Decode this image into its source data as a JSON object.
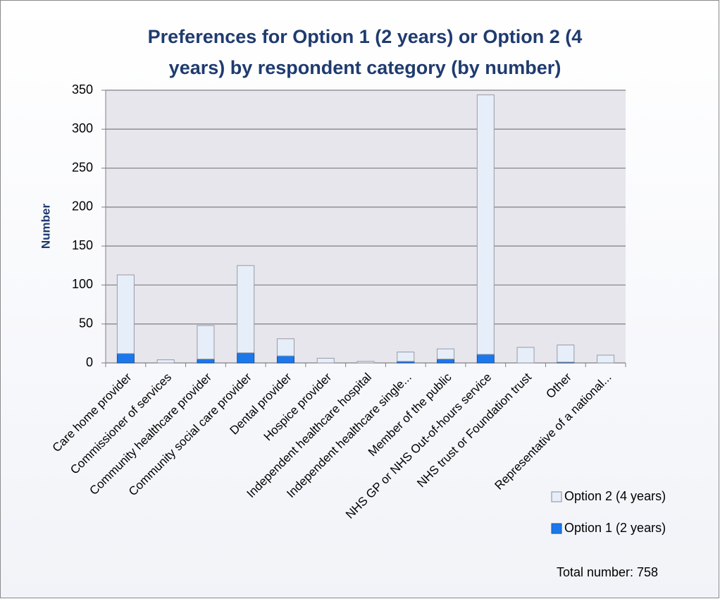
{
  "chart_data": {
    "type": "stacked_bar",
    "title": [
      "Preferences for Option 1 (2 years) or Option 2 (4",
      "years) by respondent category (by number)"
    ],
    "y_label": "Number",
    "annotation": "Total number: 758",
    "categories": [
      "Care home provider",
      "Commissioner of services",
      "Community healthcare provider",
      "Community social care provider",
      "Dental provider",
      "Hospice provider",
      "Independent healthcare hospital",
      "Independent healthcare single...",
      "Member of the public",
      "NHS GP or NHS Out-of-hours service",
      "NHS trust or Foundation trust",
      "Other",
      "Representative of a national..."
    ],
    "series": [
      {
        "name": "Option 1 (2 years)",
        "color": "#1a78ec",
        "values": [
          12,
          0,
          5,
          13,
          9,
          0,
          0,
          2,
          5,
          11,
          0,
          1,
          0
        ]
      },
      {
        "name": "Option 2 (4 years)",
        "color": "#e6eefa",
        "values": [
          101,
          4,
          43,
          112,
          22,
          6,
          2,
          12,
          13,
          333,
          20,
          22,
          10
        ]
      }
    ],
    "ylim": [
      0,
      350
    ],
    "yticks": [
      0,
      50,
      100,
      150,
      200,
      250,
      300,
      350
    ],
    "grid": true
  }
}
